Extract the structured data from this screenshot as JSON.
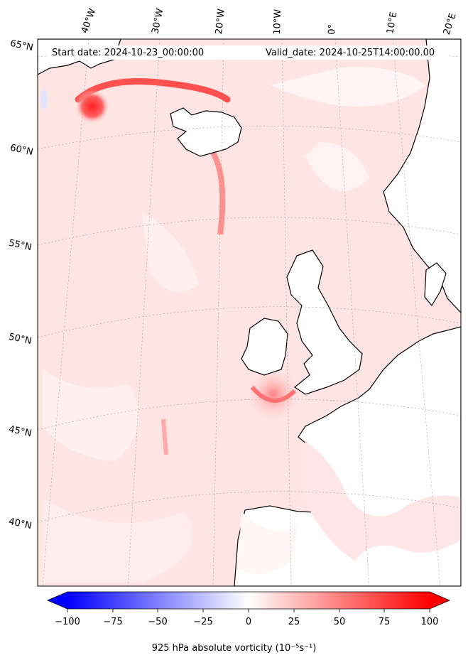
{
  "header": {
    "start_date": "Start date: 2024-10-23_00:00:00",
    "valid_date": "Valid_date: 2024-10-25T14:00:00.00"
  },
  "longitude_labels": [
    "40°W",
    "30°W",
    "20°W",
    "10°W",
    "0°",
    "10°E",
    "20°E"
  ],
  "latitude_labels": [
    "65°N",
    "60°N",
    "55°N",
    "50°N",
    "45°N",
    "40°N"
  ],
  "colorbar": {
    "title": "925 hPa absolute vorticity (10⁻⁵s⁻¹)",
    "ticks": [
      "−100",
      "−75",
      "−50",
      "−25",
      "0",
      "25",
      "50",
      "75",
      "100"
    ],
    "min": -100,
    "max": 100,
    "low_color": "#0000ff",
    "mid_color": "#ffffff",
    "high_color": "#ff0000"
  },
  "map": {
    "ocean_background": "#ffe6e6",
    "land_color": "#ffffff",
    "coastline_color": "#000000"
  }
}
